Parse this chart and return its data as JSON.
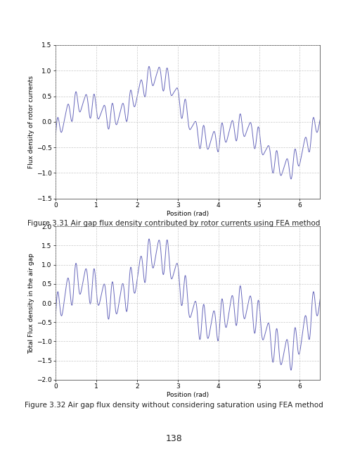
{
  "fig1": {
    "xlabel": "Position (rad)",
    "ylabel": "Flux density of rotor currents",
    "xlim": [
      0,
      6.5
    ],
    "ylim": [
      -1.5,
      1.5
    ],
    "yticks": [
      -1.5,
      -1,
      -0.5,
      0,
      0.5,
      1,
      1.5
    ],
    "xticks": [
      0,
      1,
      2,
      3,
      4,
      5,
      6
    ],
    "caption": "Figure 3.31 Air gap flux density contributed by rotor currents using FEA method",
    "line_color": "#6666bb",
    "line_width": 0.7
  },
  "fig2": {
    "xlabel": "Position (rad)",
    "ylabel": "Total Flux density in the air gap",
    "xlim": [
      0,
      6.5
    ],
    "ylim": [
      -2,
      2
    ],
    "yticks": [
      -2,
      -1.5,
      -1,
      -0.5,
      0,
      0.5,
      1,
      1.5,
      2
    ],
    "xticks": [
      0,
      1,
      2,
      3,
      4,
      5,
      6
    ],
    "caption": "Figure 3.32 Air gap flux density without considering saturation using FEA method",
    "line_color": "#6666bb",
    "line_width": 0.7
  },
  "page_number": "138",
  "background_color": "#ffffff",
  "grid_color": "#bbbbbb",
  "grid_style": "--",
  "grid_alpha": 0.8,
  "tick_fontsize": 6.5,
  "label_fontsize": 6.5,
  "caption_fontsize": 7.5
}
